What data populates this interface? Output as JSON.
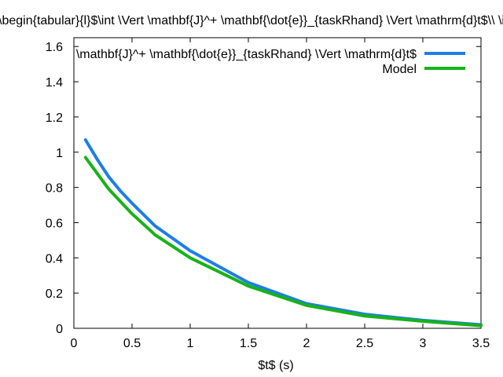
{
  "chart_data": {
    "type": "line",
    "title": "\\begin{tabular}{l}$\\int \\Vert \\mathbf{J}^+ \\mathbf{\\dot{e}}_{taskRhand} \\Vert \\mathrm{d}t$\\\\ \\int \\Vert \\mathbf{J}^+ \\mathbf{\\dot{e}}_{taskRhand} \\Vert \\mathrm{d}t & Model\\end{tabular}",
    "xlabel": "$t$ (s)",
    "ylabel": "",
    "xlim": [
      0,
      3.5
    ],
    "ylim": [
      0,
      1.65
    ],
    "xticks": [
      {
        "value": 0,
        "label": "0"
      },
      {
        "value": 0.5,
        "label": "0.5"
      },
      {
        "value": 1,
        "label": "1"
      },
      {
        "value": 1.5,
        "label": "1.5"
      },
      {
        "value": 2,
        "label": "2"
      },
      {
        "value": 2.5,
        "label": "2.5"
      },
      {
        "value": 3,
        "label": "3"
      },
      {
        "value": 3.5,
        "label": "3.5"
      }
    ],
    "yticks": [
      {
        "value": 0,
        "label": "0"
      },
      {
        "value": 0.2,
        "label": "0.2"
      },
      {
        "value": 0.4,
        "label": "0.4"
      },
      {
        "value": 0.6,
        "label": "0.6"
      },
      {
        "value": 0.8,
        "label": "0.8"
      },
      {
        "value": 1,
        "label": "1"
      },
      {
        "value": 1.2,
        "label": "1.2"
      },
      {
        "value": 1.4,
        "label": "1.4"
      },
      {
        "value": 1.6,
        "label": "1.6"
      }
    ],
    "legend_position": "top-right",
    "series": [
      {
        "name": "\\mathbf{J}^+ \\mathbf{\\dot{e}}_{taskRhand} \\Vert \\mathrm{d}t$",
        "color": "#1e7ee8",
        "x": [
          0.1,
          0.2,
          0.3,
          0.4,
          0.5,
          0.7,
          1.0,
          1.5,
          2.0,
          2.5,
          3.0,
          3.5
        ],
        "y": [
          1.07,
          0.96,
          0.86,
          0.78,
          0.71,
          0.58,
          0.44,
          0.26,
          0.14,
          0.08,
          0.045,
          0.02
        ]
      },
      {
        "name": "Model",
        "color": "#17b317",
        "x": [
          0.1,
          0.2,
          0.3,
          0.4,
          0.5,
          0.7,
          1.0,
          1.5,
          2.0,
          2.5,
          3.0,
          3.5
        ],
        "y": [
          0.97,
          0.88,
          0.79,
          0.72,
          0.65,
          0.53,
          0.4,
          0.24,
          0.13,
          0.07,
          0.04,
          0.015
        ]
      }
    ]
  }
}
